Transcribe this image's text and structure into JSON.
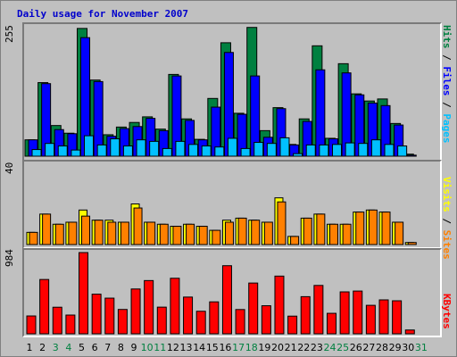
{
  "title": "Daily usage for November 2007",
  "colors": {
    "hits": "#008040",
    "files": "#0000ff",
    "pages": "#00c0ff",
    "visits": "#ffff00",
    "sites": "#ff8000",
    "kbytes": "#ff0000",
    "weekday": "#000000",
    "weekend": "#008040"
  },
  "chart_data": [
    {
      "type": "bar",
      "name": "hits-files-pages",
      "ymax_label": "255",
      "ylim": [
        0,
        255
      ],
      "legend": [
        "Pages",
        "Files",
        "Hits"
      ],
      "x": [
        1,
        2,
        3,
        4,
        5,
        6,
        7,
        8,
        9,
        10,
        11,
        12,
        13,
        14,
        15,
        16,
        17,
        18,
        19,
        20,
        21,
        22,
        23,
        24,
        25,
        26,
        27,
        28,
        29,
        30,
        31
      ],
      "series": [
        {
          "name": "Hits",
          "values": [
            32,
            144,
            60,
            45,
            250,
            149,
            42,
            57,
            66,
            77,
            53,
            160,
            73,
            33,
            113,
            222,
            84,
            252,
            50,
            95,
            23,
            73,
            216,
            35,
            181,
            122,
            108,
            112,
            64,
            4,
            0
          ]
        },
        {
          "name": "Files",
          "values": [
            32,
            142,
            52,
            44,
            232,
            146,
            39,
            54,
            58,
            74,
            50,
            157,
            70,
            32,
            96,
            203,
            82,
            157,
            37,
            93,
            22,
            68,
            169,
            34,
            163,
            120,
            104,
            99,
            61,
            2,
            0
          ]
        },
        {
          "name": "Pages",
          "values": [
            13,
            25,
            20,
            12,
            40,
            22,
            34,
            20,
            32,
            29,
            15,
            29,
            23,
            20,
            18,
            35,
            15,
            27,
            25,
            36,
            5,
            22,
            22,
            23,
            26,
            25,
            32,
            23,
            20,
            0,
            0
          ]
        }
      ]
    },
    {
      "type": "bar",
      "name": "visits-sites",
      "ymax_label": "40",
      "ylim": [
        0,
        40
      ],
      "legend": [
        "Sites",
        "Visits"
      ],
      "x": [
        1,
        2,
        3,
        4,
        5,
        6,
        7,
        8,
        9,
        10,
        11,
        12,
        13,
        14,
        15,
        16,
        17,
        18,
        19,
        20,
        21,
        22,
        23,
        24,
        25,
        26,
        27,
        28,
        29,
        30,
        31
      ],
      "series": [
        {
          "name": "Visits",
          "values": [
            6,
            15,
            10,
            11,
            17,
            12,
            12,
            11,
            20,
            11,
            10,
            9,
            10,
            9,
            7,
            12,
            13,
            12,
            11,
            23,
            4,
            13,
            15,
            10,
            10,
            16,
            17,
            16,
            11,
            1,
            0
          ]
        },
        {
          "name": "Sites",
          "values": [
            6,
            15,
            10,
            11,
            14,
            12,
            11,
            11,
            18,
            11,
            10,
            9,
            10,
            9,
            7,
            11,
            13,
            12,
            11,
            21,
            4,
            13,
            15,
            10,
            10,
            16,
            17,
            16,
            11,
            1,
            0
          ]
        }
      ]
    },
    {
      "type": "bar",
      "name": "kbytes",
      "ymax_label": "984",
      "ylim": [
        0,
        984
      ],
      "legend": [
        "KBytes"
      ],
      "x": [
        1,
        2,
        3,
        4,
        5,
        6,
        7,
        8,
        9,
        10,
        11,
        12,
        13,
        14,
        15,
        16,
        17,
        18,
        19,
        20,
        21,
        22,
        23,
        24,
        25,
        26,
        27,
        28,
        29,
        30,
        31
      ],
      "series": [
        {
          "name": "KBytes",
          "values": [
            216,
            658,
            322,
            227,
            984,
            480,
            432,
            295,
            543,
            645,
            323,
            673,
            445,
            273,
            387,
            825,
            294,
            615,
            340,
            699,
            214,
            450,
            586,
            248,
            508,
            518,
            345,
            411,
            400,
            46,
            0
          ]
        }
      ]
    }
  ],
  "x_tick_labels": [
    "1",
    "2",
    "3",
    "4",
    "5",
    "6",
    "7",
    "8",
    "9",
    "10",
    "11",
    "12",
    "13",
    "14",
    "15",
    "16",
    "17",
    "18",
    "19",
    "20",
    "21",
    "22",
    "23",
    "24",
    "25",
    "26",
    "27",
    "28",
    "29",
    "30",
    "31"
  ],
  "weekend_days": [
    3,
    4,
    10,
    11,
    17,
    18,
    24,
    25,
    31
  ]
}
